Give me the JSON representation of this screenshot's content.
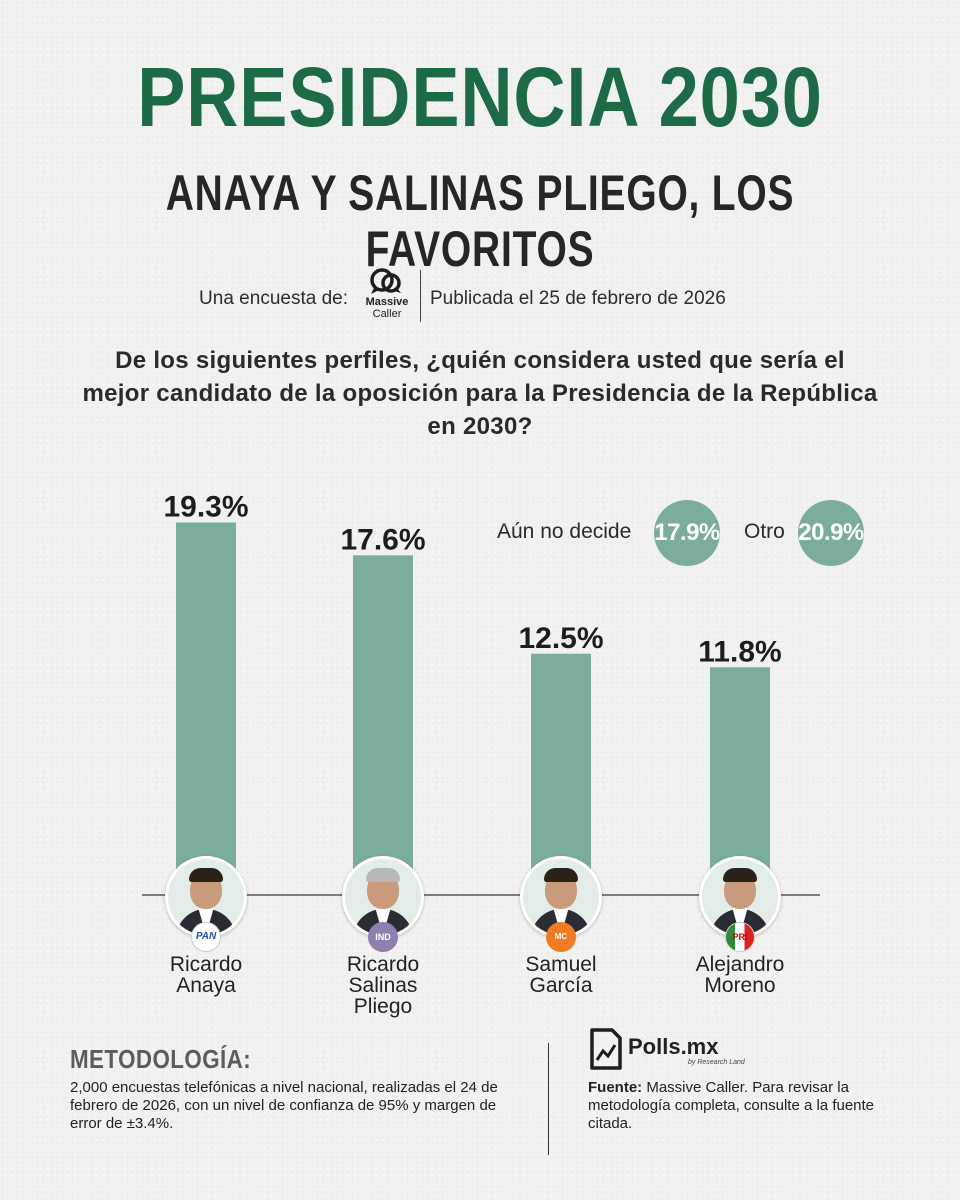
{
  "header": {
    "title": "PRESIDENCIA 2030",
    "subtitle": "ANAYA Y SALINAS PLIEGO, LOS FAVORITOS"
  },
  "source": {
    "intro": "Una encuesta de:",
    "pollster_logo_line1": "Massive",
    "pollster_logo_line2": "Caller",
    "published": "Publicada el 25 de febrero de 2026"
  },
  "question": "De los siguientes perfiles, ¿quién considera usted que sería el mejor candidato de la oposición para la Presidencia de la República en 2030?",
  "extras": {
    "undecided_label": "Aún no decide",
    "undecided_value": "17.9%",
    "other_label": "Otro",
    "other_value": "20.9%"
  },
  "chart_data": {
    "type": "bar",
    "categories": [
      "Ricardo Anaya",
      "Ricardo Salinas Pliego",
      "Samuel García",
      "Alejandro Moreno"
    ],
    "values": [
      19.3,
      17.6,
      12.5,
      11.8
    ],
    "value_labels": [
      "19.3%",
      "17.6%",
      "12.5%",
      "11.8%"
    ],
    "title": "",
    "xlabel": "",
    "ylabel": "",
    "ylim": [
      0,
      20
    ],
    "grid": false,
    "bar_color": "#7bae9a"
  },
  "candidates": [
    {
      "name_line1": "Ricardo",
      "name_line2": "Anaya",
      "name_line3": "",
      "party": "PAN"
    },
    {
      "name_line1": "Ricardo",
      "name_line2": "Salinas",
      "name_line3": "Pliego",
      "party": "IND"
    },
    {
      "name_line1": "Samuel",
      "name_line2": "García",
      "name_line3": "",
      "party": "MC"
    },
    {
      "name_line1": "Alejandro",
      "name_line2": "Moreno",
      "name_line3": "",
      "party": "PRI"
    }
  ],
  "methodology": {
    "title": "METODOLOGÍA:",
    "text": "2,000 encuestas telefónicas a nivel nacional, realizadas el 24 de febrero de 2026, con un nivel de confianza de 95% y margen de error de ±3.4%."
  },
  "footer": {
    "brand": "Polls.mx",
    "brand_tagline": "by Research Land",
    "source_label": "Fuente:",
    "source_text": " Massive Caller. Para revisar la metodología completa, consulte a la fuente citada."
  },
  "colors": {
    "title_green": "#1c6b46",
    "bar_green": "#7bae9a",
    "background": "#f1f1ef"
  }
}
